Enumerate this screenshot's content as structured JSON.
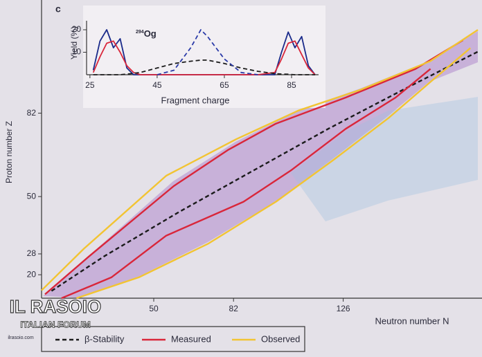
{
  "chart_data": [
    {
      "type": "line",
      "xlabel": "Neutron number N",
      "ylabel": "Proton number Z",
      "xlim": [
        5,
        180
      ],
      "ylim": [
        11,
        118
      ],
      "xticks": [
        50,
        82,
        126
      ],
      "yticks": [
        20,
        28,
        50,
        82
      ],
      "legend": "bottom-left",
      "series": [
        {
          "name": "β-Stability",
          "color": "#1b1b1b",
          "linestyle": "dashed",
          "x": [
            9,
            30,
            60,
            90,
            120,
            150,
            180
          ],
          "values": [
            13.8,
            27,
            44,
            60,
            76,
            91,
            105.6
          ]
        },
        {
          "name": "Measured",
          "color": "#d9263a",
          "linestyle": "solid",
          "x": [
            6.4,
            24,
            58,
            80,
            99,
            127,
            155,
            174,
            null,
            13,
            33,
            55,
            86,
            105,
            127,
            147,
            161
          ],
          "values": [
            12.5,
            27,
            54,
            68,
            78,
            88,
            99,
            110,
            null,
            11,
            19,
            35,
            48,
            60,
            76,
            88,
            99
          ]
        },
        {
          "name": "Observed",
          "color": "#f2c432",
          "linestyle": "solid",
          "x": [
            5,
            22,
            55,
            83,
            108,
            133,
            161,
            180,
            null,
            19,
            44,
            72,
            99,
            122,
            144,
            161,
            177
          ],
          "values": [
            14,
            30,
            58,
            72,
            83,
            91,
            102,
            114,
            null,
            11,
            19,
            32,
            48,
            64,
            80,
            94,
            107
          ]
        }
      ]
    },
    {
      "type": "line",
      "panel": "c",
      "title": {
        "mass": "294",
        "symbol": "Og"
      },
      "xlabel": "Fragment charge",
      "ylabel": "Yield (%)",
      "xlim": [
        24,
        92
      ],
      "ylim": [
        0,
        24
      ],
      "xticks": [
        25,
        45,
        65,
        85
      ],
      "yticks": [
        10,
        20
      ],
      "series": [
        {
          "color": "#1a2a8a",
          "linestyle": "solid",
          "x": [
            26,
            28,
            30,
            32,
            34,
            36,
            38,
            40,
            45,
            50,
            55,
            58,
            60,
            65,
            70,
            75,
            80,
            82,
            84,
            86,
            88,
            90,
            92
          ],
          "values": [
            2,
            15,
            20,
            12,
            16,
            3,
            0,
            0,
            0,
            0,
            0,
            0,
            0,
            0,
            0,
            0,
            0,
            10,
            19,
            12,
            17,
            4,
            0
          ]
        },
        {
          "color": "#d9263a",
          "linestyle": "solid",
          "x": [
            26,
            28,
            30,
            32,
            34,
            36,
            38,
            40,
            45,
            50,
            55,
            58,
            60,
            65,
            70,
            75,
            80,
            82,
            84,
            86,
            88,
            90,
            92
          ],
          "values": [
            1,
            8,
            14,
            15,
            10,
            4,
            1,
            0,
            0,
            0,
            0,
            0,
            0,
            0,
            0,
            0,
            1,
            7,
            14,
            15,
            9,
            3,
            0
          ]
        },
        {
          "color": "#1b1b1b",
          "linestyle": "dashed",
          "x": [
            26,
            28,
            30,
            32,
            34,
            36,
            38,
            40,
            45,
            50,
            55,
            58,
            60,
            65,
            70,
            75,
            80,
            82,
            84,
            86,
            88,
            90,
            92
          ],
          "values": [
            0,
            0,
            0,
            0,
            0,
            0.3,
            0.6,
            1,
            3,
            5,
            6,
            6.5,
            6.5,
            5,
            3,
            1.5,
            0.5,
            0.3,
            0.2,
            0,
            0,
            0,
            0
          ]
        },
        {
          "color": "#2a3aa8",
          "linestyle": "dashed",
          "x": [
            45,
            50,
            55,
            58,
            60,
            65,
            70,
            75
          ],
          "values": [
            0,
            2,
            12,
            20,
            17,
            7,
            1,
            0
          ]
        }
      ]
    }
  ],
  "watermark": {
    "title": "IL RASOIO",
    "subtitle": "ITALIAN FORUM",
    "site": "ilrasoio.com"
  }
}
